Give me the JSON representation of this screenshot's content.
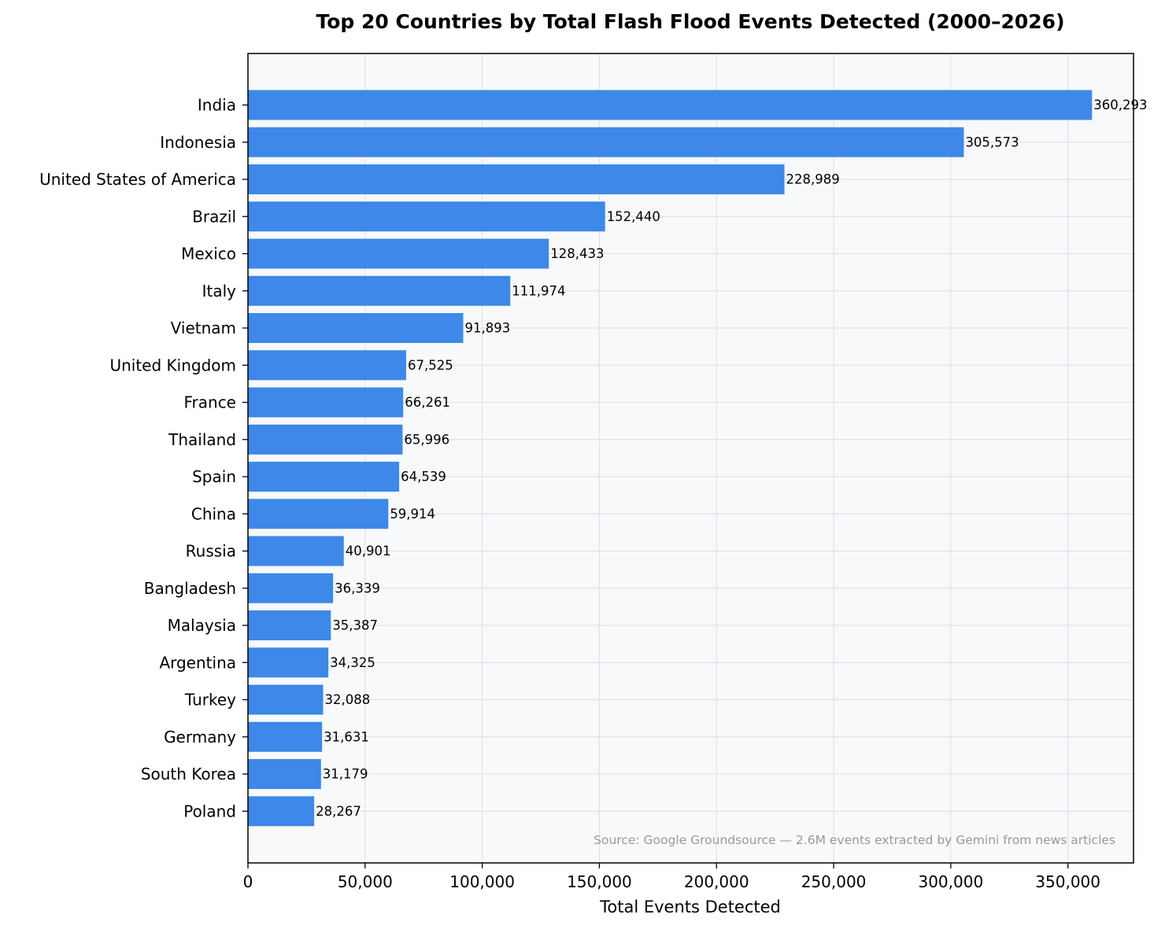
{
  "chart_data": {
    "type": "bar",
    "orientation": "horizontal",
    "title": "Top 20 Countries by Total Flash Flood Events Detected (2000–2026)",
    "xlabel": "Total Events Detected",
    "ylabel": "",
    "xlim": [
      0,
      378000
    ],
    "x_ticks": [
      0,
      50000,
      100000,
      150000,
      200000,
      250000,
      300000,
      350000
    ],
    "x_tick_labels": [
      "0",
      "50,000",
      "100,000",
      "150,000",
      "200,000",
      "250,000",
      "300,000",
      "350,000"
    ],
    "grid": true,
    "categories": [
      "India",
      "Indonesia",
      "United States of America",
      "Brazil",
      "Mexico",
      "Italy",
      "Vietnam",
      "United Kingdom",
      "France",
      "Thailand",
      "Spain",
      "China",
      "Russia",
      "Bangladesh",
      "Malaysia",
      "Argentina",
      "Turkey",
      "Germany",
      "South Korea",
      "Poland"
    ],
    "values": [
      360293,
      305573,
      228989,
      152440,
      128433,
      111974,
      91893,
      67525,
      66261,
      65996,
      64539,
      59914,
      40901,
      36339,
      35387,
      34325,
      32088,
      31631,
      31179,
      28267
    ],
    "value_labels": [
      "360,293",
      "305,573",
      "228,989",
      "152,440",
      "128,433",
      "111,974",
      "91,893",
      "67,525",
      "66,261",
      "65,996",
      "64,539",
      "59,914",
      "40,901",
      "36,339",
      "35,387",
      "34,325",
      "32,088",
      "31,631",
      "31,179",
      "28,267"
    ],
    "annotation": "Source: Google Groundsource — 2.6M events extracted by Gemini from news articles",
    "colors": {
      "bar": "#3d88e8",
      "plot_background": "#f7f9fb",
      "grid": "#dcdfe3",
      "annotation": "#999999"
    }
  }
}
